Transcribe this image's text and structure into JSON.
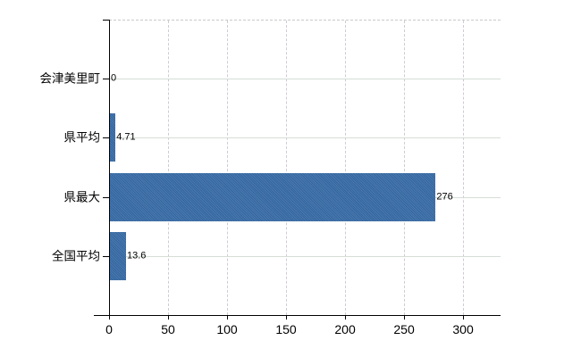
{
  "chart_data": {
    "type": "bar",
    "orientation": "horizontal",
    "title": "",
    "categories": [
      "会津美里町",
      "県平均",
      "県最大",
      "全国平均"
    ],
    "values": [
      0,
      4.71,
      276,
      13.6
    ],
    "value_labels": [
      "0",
      "4.71",
      "276",
      "13.6"
    ],
    "xticks": [
      0,
      50,
      100,
      150,
      200,
      250,
      300
    ],
    "xtick_labels": [
      "0",
      "50",
      "100",
      "150",
      "200",
      "250",
      "300"
    ],
    "xlim": [
      0,
      331
    ],
    "xlabel": "",
    "ylabel": "",
    "legend_position": "none",
    "grid": {
      "vertical": "dashed",
      "horizontal": "solid",
      "top_border": "dashed"
    }
  },
  "colors": {
    "bar": "#3e6fa8",
    "bar_dither_dark": "#35669f",
    "bar_dither_light": "#4878ad",
    "axis": "#000000",
    "grid_horizontal": "#d6ded6",
    "grid_vertical": "#d0cad6",
    "plot_top_border": "#c9c9c9",
    "text": "#000000",
    "background": "#ffffff"
  }
}
